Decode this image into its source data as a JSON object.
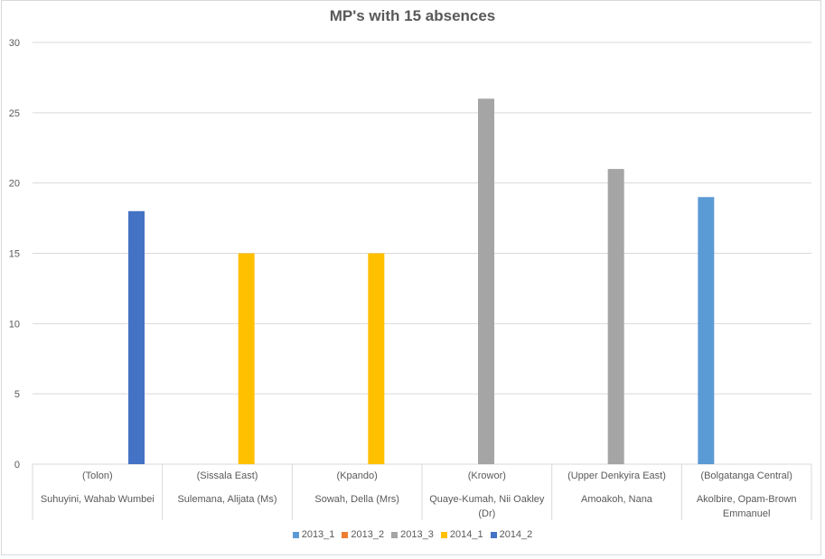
{
  "chart_data": {
    "type": "bar",
    "title": "MP's with 15 absences",
    "categories": [
      {
        "constituency": "(Tolon)",
        "name": [
          "Suhuyini, Wahab Wumbei"
        ]
      },
      {
        "constituency": "(Sissala East)",
        "name": [
          "Sulemana, Alijata (Ms)"
        ]
      },
      {
        "constituency": "(Kpando)",
        "name": [
          "Sowah, Della (Mrs)"
        ]
      },
      {
        "constituency": "(Krowor)",
        "name": [
          "Quaye-Kumah, Nii Oakley",
          "(Dr)"
        ]
      },
      {
        "constituency": "(Upper Denkyira East)",
        "name": [
          "Amoakoh, Nana"
        ]
      },
      {
        "constituency": "(Bolgatanga Central)",
        "name": [
          "Akolbire, Opam-Brown",
          "Emmanuel"
        ]
      }
    ],
    "series": [
      {
        "name": "2013_1",
        "color": "#5b9bd5",
        "values": [
          null,
          null,
          null,
          null,
          null,
          19
        ]
      },
      {
        "name": "2013_2",
        "color": "#ed7d31",
        "values": [
          null,
          null,
          null,
          null,
          null,
          null
        ]
      },
      {
        "name": "2013_3",
        "color": "#a5a5a5",
        "values": [
          null,
          null,
          null,
          26,
          21,
          null
        ]
      },
      {
        "name": "2014_1",
        "color": "#ffc000",
        "values": [
          null,
          15,
          15,
          null,
          null,
          null
        ]
      },
      {
        "name": "2014_2",
        "color": "#4472c4",
        "values": [
          18,
          null,
          null,
          null,
          null,
          null
        ]
      }
    ],
    "yticks": [
      0,
      5,
      10,
      15,
      20,
      25,
      30
    ],
    "ylim": [
      0,
      30
    ],
    "grid": true,
    "legend": "bottom"
  }
}
